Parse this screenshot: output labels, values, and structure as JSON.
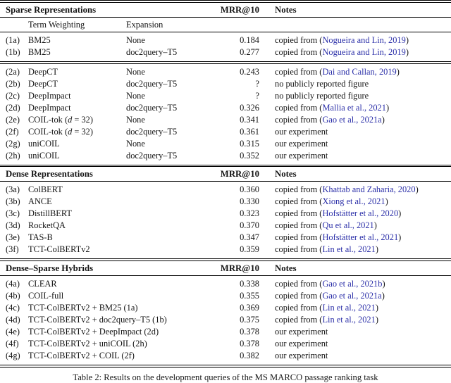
{
  "caption": "Table 2: Results on the development queries of the MS MARCO passage ranking task",
  "colors": {
    "citation_link": "#2b2fa8",
    "text": "#141414",
    "rule": "#000000"
  },
  "column_headers": {
    "mrr": "MRR@10",
    "notes": "Notes"
  },
  "sections": [
    {
      "title": "Sparse Representations",
      "subheader": {
        "term_weighting": "Term Weighting",
        "expansion": "Expansion"
      },
      "has_expansion_column": true,
      "groups": [
        {
          "rows": [
            {
              "id": "(1a)",
              "system": "BM25",
              "expansion": "None",
              "mrr": "0.184",
              "note_pre": "copied from (",
              "cite": "Nogueira and Lin, 2019",
              "note_post": ")"
            },
            {
              "id": "(1b)",
              "system": "BM25",
              "expansion": "doc2query–T5",
              "mrr": "0.277",
              "note_pre": "copied from (",
              "cite": "Nogueira and Lin, 2019",
              "note_post": ")"
            }
          ]
        },
        {
          "rows": [
            {
              "id": "(2a)",
              "system": "DeepCT",
              "expansion": "None",
              "mrr": "0.243",
              "note_pre": "copied from (",
              "cite": "Dai and Callan, 2019",
              "note_post": ")"
            },
            {
              "id": "(2b)",
              "system": "DeepCT",
              "expansion": "doc2query–T5",
              "mrr": "?",
              "note_pre": "no publicly reported figure",
              "cite": "",
              "note_post": ""
            },
            {
              "id": "(2c)",
              "system": "DeepImpact",
              "expansion": "None",
              "mrr": "?",
              "note_pre": "no publicly reported figure",
              "cite": "",
              "note_post": ""
            },
            {
              "id": "(2d)",
              "system": "DeepImpact",
              "expansion": "doc2query–T5",
              "mrr": "0.326",
              "note_pre": "copied from (",
              "cite": "Mallia et al., 2021",
              "note_post": ")"
            },
            {
              "id": "(2e)",
              "system": "COIL-tok (d = 32)",
              "system_parts": [
                {
                  "t": "COIL-tok ("
                },
                {
                  "t": "d",
                  "i": true
                },
                {
                  "t": " = 32)"
                }
              ],
              "expansion": "None",
              "mrr": "0.341",
              "note_pre": "copied from (",
              "cite": "Gao et al., 2021a",
              "note_post": ")"
            },
            {
              "id": "(2f)",
              "system": "COIL-tok (d = 32)",
              "system_parts": [
                {
                  "t": "COIL-tok ("
                },
                {
                  "t": "d",
                  "i": true
                },
                {
                  "t": " = 32)"
                }
              ],
              "expansion": "doc2query–T5",
              "mrr": "0.361",
              "note_pre": "our experiment",
              "cite": "",
              "note_post": ""
            },
            {
              "id": "(2g)",
              "system": "uniCOIL",
              "expansion": "None",
              "mrr": "0.315",
              "note_pre": "our experiment",
              "cite": "",
              "note_post": ""
            },
            {
              "id": "(2h)",
              "system": "uniCOIL",
              "expansion": "doc2query–T5",
              "mrr": "0.352",
              "note_pre": "our experiment",
              "cite": "",
              "note_post": ""
            }
          ]
        }
      ]
    },
    {
      "title": "Dense Representations",
      "subheader": null,
      "has_expansion_column": false,
      "groups": [
        {
          "rows": [
            {
              "id": "(3a)",
              "system": "ColBERT",
              "mrr": "0.360",
              "note_pre": "copied from (",
              "cite": "Khattab and Zaharia, 2020",
              "note_post": ")"
            },
            {
              "id": "(3b)",
              "system": "ANCE",
              "mrr": "0.330",
              "note_pre": "copied from (",
              "cite": "Xiong et al., 2021",
              "note_post": ")"
            },
            {
              "id": "(3c)",
              "system": "DistillBERT",
              "mrr": "0.323",
              "note_pre": "copied from (",
              "cite": "Hofstätter et al., 2020",
              "note_post": ")"
            },
            {
              "id": "(3d)",
              "system": "RocketQA",
              "mrr": "0.370",
              "note_pre": "copied from (",
              "cite": "Qu et al., 2021",
              "note_post": ")"
            },
            {
              "id": "(3e)",
              "system": "TAS-B",
              "mrr": "0.347",
              "note_pre": "copied from (",
              "cite": "Hofstätter et al., 2021",
              "note_post": ")"
            },
            {
              "id": "(3f)",
              "system": "TCT-ColBERTv2",
              "mrr": "0.359",
              "note_pre": "copied from (",
              "cite": "Lin et al., 2021",
              "note_post": ")"
            }
          ]
        }
      ]
    },
    {
      "title": "Dense–Sparse Hybrids",
      "subheader": null,
      "has_expansion_column": false,
      "groups": [
        {
          "rows": [
            {
              "id": "(4a)",
              "system": "CLEAR",
              "mrr": "0.338",
              "note_pre": "copied from (",
              "cite": "Gao et al., 2021b",
              "note_post": ")"
            },
            {
              "id": "(4b)",
              "system": "COIL-full",
              "mrr": "0.355",
              "note_pre": "copied from (",
              "cite": "Gao et al., 2021a",
              "note_post": ")"
            },
            {
              "id": "(4c)",
              "system": "TCT-ColBERTv2 + BM25 (1a)",
              "mrr": "0.369",
              "note_pre": "copied from (",
              "cite": "Lin et al., 2021",
              "note_post": ")"
            },
            {
              "id": "(4d)",
              "system": "TCT-ColBERTv2 + doc2query–T5 (1b)",
              "mrr": "0.375",
              "note_pre": "copied from (",
              "cite": "Lin et al., 2021",
              "note_post": ")"
            },
            {
              "id": "(4e)",
              "system": "TCT-ColBERTv2 + DeepImpact (2d)",
              "mrr": "0.378",
              "note_pre": "our experiment",
              "cite": "",
              "note_post": ""
            },
            {
              "id": "(4f)",
              "system": "TCT-ColBERTv2 + uniCOIL (2h)",
              "mrr": "0.378",
              "note_pre": "our experiment",
              "cite": "",
              "note_post": ""
            },
            {
              "id": "(4g)",
              "system": "TCT-ColBERTv2 + COIL (2f)",
              "mrr": "0.382",
              "note_pre": "our experiment",
              "cite": "",
              "note_post": ""
            }
          ]
        }
      ]
    }
  ]
}
